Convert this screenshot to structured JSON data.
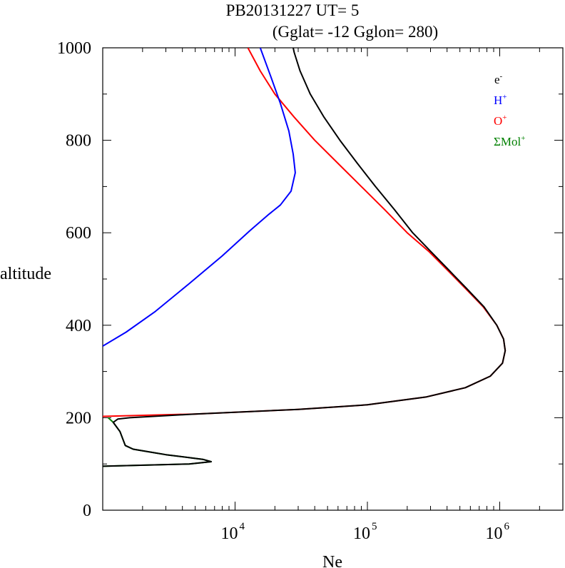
{
  "chart_data": {
    "type": "line",
    "title_line1": "PB20131227   UT=  5",
    "title_line2": "(Gglat= -12   Gglon=  280)",
    "xlabel": "Ne",
    "ylabel": "altitude",
    "x_scale": "log",
    "xlim": [
      1000,
      3000000
    ],
    "ylim": [
      0,
      1000
    ],
    "y_ticks": [
      "0",
      "200",
      "400",
      "600",
      "800",
      "1000"
    ],
    "x_ticks": [
      {
        "value": 10000,
        "base": "10",
        "exp": "4"
      },
      {
        "value": 100000,
        "base": "10",
        "exp": "5"
      },
      {
        "value": 1000000,
        "base": "10",
        "exp": "6"
      }
    ],
    "legend": [
      {
        "base": "e",
        "sup": "-",
        "color": "#000000"
      },
      {
        "base": "H",
        "sup": "+",
        "color": "#0000ff"
      },
      {
        "base": "O",
        "sup": "+",
        "color": "#ff0000"
      },
      {
        "base": "ΣMol",
        "sup": "+",
        "color": "#008000"
      }
    ],
    "series": [
      {
        "name": "ΣMol+",
        "color": "#008000",
        "points": [
          [
            1100,
            200
          ],
          [
            1200,
            190
          ],
          [
            1350,
            170
          ],
          [
            1480,
            140
          ],
          [
            1700,
            132
          ],
          [
            3000,
            120
          ],
          [
            5700,
            110
          ],
          [
            6600,
            105
          ],
          [
            4500,
            100
          ],
          [
            1000,
            95
          ]
        ]
      },
      {
        "name": "O+",
        "color": "#ff0000",
        "points": [
          [
            1000,
            203
          ],
          [
            5000,
            208
          ],
          [
            30000,
            218
          ],
          [
            100000,
            228
          ],
          [
            280000,
            245
          ],
          [
            550000,
            265
          ],
          [
            850000,
            290
          ],
          [
            1050000,
            318
          ],
          [
            1100000,
            345
          ],
          [
            1070000,
            370
          ],
          [
            950000,
            400
          ],
          [
            750000,
            440
          ],
          [
            550000,
            480
          ],
          [
            400000,
            520
          ],
          [
            290000,
            560
          ],
          [
            200000,
            600
          ],
          [
            135000,
            650
          ],
          [
            90000,
            700
          ],
          [
            60000,
            750
          ],
          [
            40000,
            800
          ],
          [
            28000,
            850
          ],
          [
            20000,
            900
          ],
          [
            15500,
            950
          ],
          [
            12500,
            1000
          ]
        ]
      },
      {
        "name": "H+",
        "color": "#0000ff",
        "points": [
          [
            1000,
            355
          ],
          [
            1500,
            385
          ],
          [
            2500,
            430
          ],
          [
            4500,
            490
          ],
          [
            8000,
            550
          ],
          [
            13000,
            605
          ],
          [
            18000,
            640
          ],
          [
            22000,
            660
          ],
          [
            26500,
            690
          ],
          [
            28500,
            730
          ],
          [
            27500,
            770
          ],
          [
            25500,
            820
          ],
          [
            22000,
            880
          ],
          [
            18500,
            940
          ],
          [
            15500,
            1000
          ]
        ]
      },
      {
        "name": "e-",
        "color": "#000000",
        "points": [
          [
            1000,
            95
          ],
          [
            4500,
            100
          ],
          [
            6600,
            105
          ],
          [
            5700,
            110
          ],
          [
            3000,
            120
          ],
          [
            1700,
            132
          ],
          [
            1480,
            140
          ],
          [
            1350,
            170
          ],
          [
            1200,
            190
          ],
          [
            1300,
            197
          ],
          [
            1600,
            200
          ],
          [
            5000,
            208
          ],
          [
            30000,
            218
          ],
          [
            100000,
            228
          ],
          [
            280000,
            245
          ],
          [
            550000,
            265
          ],
          [
            850000,
            290
          ],
          [
            1050000,
            318
          ],
          [
            1100000,
            345
          ],
          [
            1070000,
            370
          ],
          [
            950000,
            400
          ],
          [
            760000,
            440
          ],
          [
            560000,
            480
          ],
          [
            410000,
            520
          ],
          [
            300000,
            560
          ],
          [
            220000,
            600
          ],
          [
            160000,
            650
          ],
          [
            115000,
            700
          ],
          [
            84000,
            750
          ],
          [
            62000,
            800
          ],
          [
            47000,
            850
          ],
          [
            37000,
            900
          ],
          [
            31000,
            950
          ],
          [
            28000,
            990
          ],
          [
            27500,
            1000
          ]
        ]
      }
    ]
  }
}
